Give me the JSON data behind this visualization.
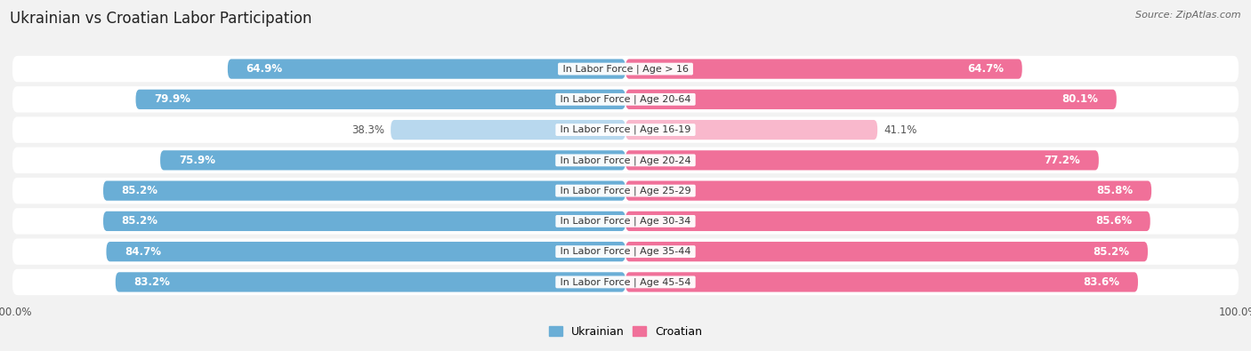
{
  "title": "Ukrainian vs Croatian Labor Participation",
  "source": "Source: ZipAtlas.com",
  "categories": [
    "In Labor Force | Age > 16",
    "In Labor Force | Age 20-64",
    "In Labor Force | Age 16-19",
    "In Labor Force | Age 20-24",
    "In Labor Force | Age 25-29",
    "In Labor Force | Age 30-34",
    "In Labor Force | Age 35-44",
    "In Labor Force | Age 45-54"
  ],
  "ukrainian_values": [
    64.9,
    79.9,
    38.3,
    75.9,
    85.2,
    85.2,
    84.7,
    83.2
  ],
  "croatian_values": [
    64.7,
    80.1,
    41.1,
    77.2,
    85.8,
    85.6,
    85.2,
    83.6
  ],
  "ukrainian_color": "#6aaed6",
  "croatian_color": "#f07099",
  "ukrainian_color_light": "#b8d8ee",
  "croatian_color_light": "#f9b8cc",
  "row_bg_color": "#e8e8e8",
  "background_color": "#f2f2f2",
  "legend_ukrainian": "Ukrainian",
  "legend_croatian": "Croatian",
  "title_fontsize": 12,
  "label_fontsize": 8,
  "value_fontsize": 8.5,
  "axis_label_fontsize": 8.5
}
